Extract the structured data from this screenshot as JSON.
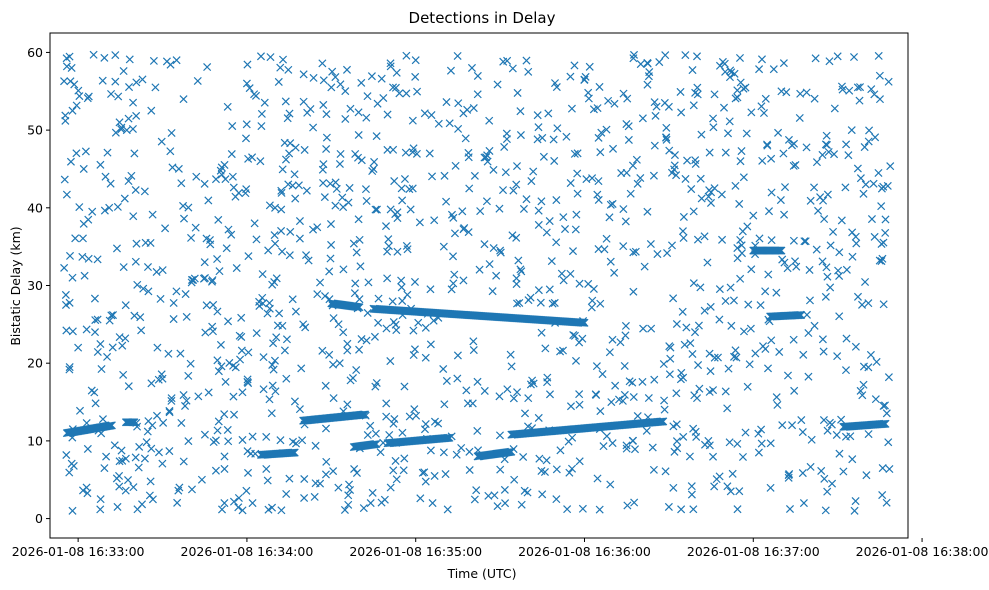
{
  "chart_data": {
    "type": "scatter",
    "title": "Detections in Delay",
    "xlabel": "Time (UTC)",
    "ylabel": "Bistatic Delay (km)",
    "xlim": [
      "2026-01-08 16:32:50",
      "2026-01-08 16:37:55"
    ],
    "ylim": [
      -2.5,
      62.5
    ],
    "x_ticks": [
      "2026-01-08 16:33:00",
      "2026-01-08 16:34:00",
      "2026-01-08 16:35:00",
      "2026-01-08 16:36:00",
      "2026-01-08 16:37:00",
      "2026-01-08 16:38:00"
    ],
    "y_ticks": [
      "0",
      "10",
      "20",
      "30",
      "40",
      "50",
      "60"
    ],
    "marker": "x",
    "color": "#1f77b4",
    "grid": false,
    "legend": "none",
    "track_series": [
      {
        "start": "2026-01-08 16:32:56",
        "end": "2026-01-08 16:33:12",
        "y_start": 11.0,
        "y_end": 12.0
      },
      {
        "start": "2026-01-08 16:33:17",
        "end": "2026-01-08 16:33:20",
        "y_start": 12.4,
        "y_end": 12.4
      },
      {
        "start": "2026-01-08 16:34:05",
        "end": "2026-01-08 16:34:17",
        "y_start": 8.2,
        "y_end": 8.5
      },
      {
        "start": "2026-01-08 16:34:20",
        "end": "2026-01-08 16:34:42",
        "y_start": 12.6,
        "y_end": 13.4
      },
      {
        "start": "2026-01-08 16:34:30",
        "end": "2026-01-08 16:34:40",
        "y_start": 27.7,
        "y_end": 27.2
      },
      {
        "start": "2026-01-08 16:34:38",
        "end": "2026-01-08 16:34:46",
        "y_start": 9.2,
        "y_end": 9.6
      },
      {
        "start": "2026-01-08 16:34:45",
        "end": "2026-01-08 16:36:00",
        "y_start": 27.0,
        "y_end": 25.2
      },
      {
        "start": "2026-01-08 16:34:50",
        "end": "2026-01-08 16:35:12",
        "y_start": 9.7,
        "y_end": 10.4
      },
      {
        "start": "2026-01-08 16:35:22",
        "end": "2026-01-08 16:35:34",
        "y_start": 8.0,
        "y_end": 8.6
      },
      {
        "start": "2026-01-08 16:35:34",
        "end": "2026-01-08 16:36:28",
        "y_start": 10.8,
        "y_end": 12.5
      },
      {
        "start": "2026-01-08 16:37:00",
        "end": "2026-01-08 16:37:10",
        "y_start": 34.5,
        "y_end": 34.5
      },
      {
        "start": "2026-01-08 16:37:06",
        "end": "2026-01-08 16:37:17",
        "y_start": 26.0,
        "y_end": 26.2
      },
      {
        "start": "2026-01-08 16:37:32",
        "end": "2026-01-08 16:37:47",
        "y_start": 11.8,
        "y_end": 12.2
      }
    ],
    "scatter_points": [
      [
        "2026-01-08 16:32:55",
        56.3
      ],
      [
        "2026-01-08 16:32:58",
        52.5
      ],
      [
        "2026-01-08 16:33:02",
        45.0
      ],
      [
        "2026-01-08 16:32:56",
        41.7
      ],
      [
        "2026-01-08 16:33:05",
        39.5
      ],
      [
        "2026-01-08 16:32:58",
        31.0
      ],
      [
        "2026-01-08 16:33:00",
        22.0
      ],
      [
        "2026-01-08 16:32:57",
        19.5
      ],
      [
        "2026-01-08 16:32:58",
        1.0
      ],
      [
        "2026-01-08 16:33:03",
        4.0
      ],
      [
        "2026-01-08 16:33:08",
        2.5
      ],
      [
        "2026-01-08 16:33:14",
        1.5
      ],
      [
        "2026-01-08 16:33:20",
        47.0
      ],
      [
        "2026-01-08 16:33:26",
        52.5
      ],
      [
        "2026-01-08 16:33:35",
        59.0
      ],
      [
        "2026-01-08 16:33:42",
        44.0
      ],
      [
        "2026-01-08 16:33:45",
        33.0
      ],
      [
        "2026-01-08 16:33:48",
        27.5
      ],
      [
        "2026-01-08 16:33:24",
        35.5
      ],
      [
        "2026-01-08 16:33:30",
        18.0
      ],
      [
        "2026-01-08 16:33:38",
        14.5
      ],
      [
        "2026-01-08 16:33:44",
        5.0
      ],
      [
        "2026-01-08 16:33:52",
        2.0
      ],
      [
        "2026-01-08 16:33:55",
        44.0
      ],
      [
        "2026-01-08 16:34:00",
        56.0
      ],
      [
        "2026-01-08 16:34:05",
        59.5
      ],
      [
        "2026-01-08 16:34:10",
        40.0
      ],
      [
        "2026-01-08 16:34:15",
        47.0
      ],
      [
        "2026-01-08 16:34:20",
        25.0
      ],
      [
        "2026-01-08 16:34:25",
        37.5
      ],
      [
        "2026-01-08 16:34:30",
        55.5
      ],
      [
        "2026-01-08 16:34:33",
        20.0
      ],
      [
        "2026-01-08 16:34:36",
        3.0
      ],
      [
        "2026-01-08 16:34:45",
        45.0
      ],
      [
        "2026-01-08 16:34:50",
        52.0
      ],
      [
        "2026-01-08 16:34:55",
        42.5
      ],
      [
        "2026-01-08 16:35:00",
        59.0
      ],
      [
        "2026-01-08 16:35:05",
        47.0
      ],
      [
        "2026-01-08 16:35:10",
        35.0
      ],
      [
        "2026-01-08 16:35:15",
        21.0
      ],
      [
        "2026-01-08 16:35:20",
        58.0
      ],
      [
        "2026-01-08 16:35:25",
        46.5
      ],
      [
        "2026-01-08 16:35:30",
        34.5
      ],
      [
        "2026-01-08 16:35:35",
        5.0
      ],
      [
        "2026-01-08 16:35:40",
        57.5
      ],
      [
        "2026-01-08 16:35:45",
        49.0
      ],
      [
        "2026-01-08 16:35:50",
        41.0
      ],
      [
        "2026-01-08 16:35:55",
        31.5
      ],
      [
        "2026-01-08 16:36:00",
        56.5
      ],
      [
        "2026-01-08 16:36:05",
        49.0
      ],
      [
        "2026-01-08 16:36:10",
        40.5
      ],
      [
        "2026-01-08 16:36:15",
        44.5
      ],
      [
        "2026-01-08 16:36:20",
        58.5
      ],
      [
        "2026-01-08 16:36:25",
        48.0
      ],
      [
        "2026-01-08 16:36:30",
        53.0
      ],
      [
        "2026-01-08 16:36:35",
        37.0
      ],
      [
        "2026-01-08 16:36:40",
        59.5
      ],
      [
        "2026-01-08 16:36:45",
        42.0
      ],
      [
        "2026-01-08 16:36:50",
        57.5
      ],
      [
        "2026-01-08 16:36:55",
        40.5
      ],
      [
        "2026-01-08 16:37:00",
        39.0
      ],
      [
        "2026-01-08 16:37:05",
        48.0
      ],
      [
        "2026-01-08 16:37:10",
        55.0
      ],
      [
        "2026-01-08 16:37:15",
        45.5
      ],
      [
        "2026-01-08 16:37:20",
        32.0
      ],
      [
        "2026-01-08 16:37:25",
        21.5
      ],
      [
        "2026-01-08 16:37:30",
        59.5
      ],
      [
        "2026-01-08 16:37:35",
        50.0
      ],
      [
        "2026-01-08 16:37:40",
        43.0
      ],
      [
        "2026-01-08 16:37:45",
        57.0
      ],
      [
        "2026-01-08 16:37:47",
        38.5
      ],
      [
        "2026-01-08 16:37:46",
        6.5
      ],
      [
        "2026-01-08 16:37:36",
        1.0
      ],
      [
        "2026-01-08 16:37:28",
        4.5
      ],
      [
        "2026-01-08 16:37:18",
        2.0
      ],
      [
        "2026-01-08 16:37:02",
        8.5
      ],
      [
        "2026-01-08 16:36:52",
        3.5
      ],
      [
        "2026-01-08 16:36:40",
        15.5
      ],
      [
        "2026-01-08 16:36:30",
        1.5
      ],
      [
        "2026-01-08 16:36:15",
        9.0
      ],
      [
        "2026-01-08 16:36:04",
        16.0
      ],
      [
        "2026-01-08 16:35:50",
        2.5
      ],
      [
        "2026-01-08 16:35:40",
        15.5
      ],
      [
        "2026-01-08 16:35:28",
        3.0
      ],
      [
        "2026-01-08 16:35:18",
        16.5
      ],
      [
        "2026-01-08 16:35:06",
        2.0
      ],
      [
        "2026-01-08 16:34:56",
        17.0
      ],
      [
        "2026-01-08 16:34:44",
        2.0
      ],
      [
        "2026-01-08 16:34:26",
        4.5
      ],
      [
        "2026-01-08 16:34:14",
        18.0
      ],
      [
        "2026-01-08 16:34:02",
        2.0
      ],
      [
        "2026-01-08 16:33:50",
        12.5
      ],
      [
        "2026-01-08 16:33:36",
        4.0
      ],
      [
        "2026-01-08 16:33:26",
        9.0
      ],
      [
        "2026-01-08 16:33:16",
        18.5
      ],
      [
        "2026-01-08 16:33:06",
        24.0
      ]
    ]
  }
}
